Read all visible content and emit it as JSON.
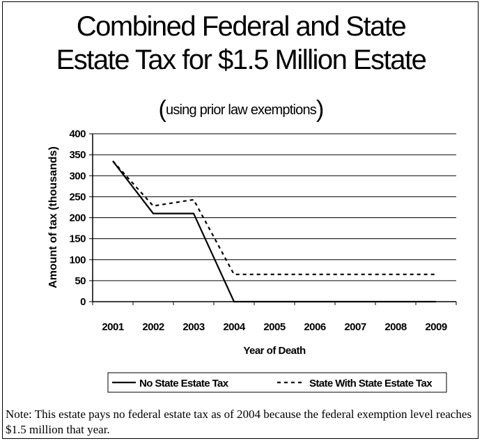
{
  "chart_data": {
    "type": "line",
    "title_line1": "Combined Federal and State",
    "title_line2": "Estate Tax for $1.5 Million Estate",
    "subtitle": "using prior law exemptions",
    "xlabel": "Year of Death",
    "ylabel": "Amount of tax (thousands)",
    "ylim": [
      0,
      400
    ],
    "yticks": [
      0,
      50,
      100,
      150,
      200,
      250,
      300,
      350,
      400
    ],
    "categories": [
      "2001",
      "2002",
      "2003",
      "2004",
      "2005",
      "2006",
      "2007",
      "2008",
      "2009"
    ],
    "grid": true,
    "legend_position": "bottom",
    "series": [
      {
        "name": "No State Estate Tax",
        "style": "solid",
        "color": "#000000",
        "values": [
          335,
          210,
          210,
          0,
          0,
          0,
          0,
          0,
          0
        ]
      },
      {
        "name": "State With State Estate Tax",
        "style": "dotted",
        "color": "#000000",
        "values": [
          335,
          228,
          243,
          65,
          65,
          65,
          65,
          65,
          65
        ]
      }
    ]
  },
  "note": "Note: This estate pays no federal estate tax as of 2004 because the federal exemption level reaches $1.5 million that year."
}
